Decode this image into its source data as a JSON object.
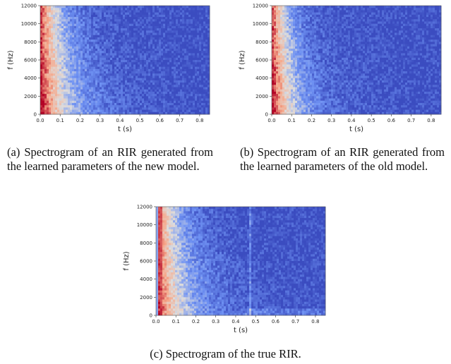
{
  "chart_data": [
    {
      "type": "heatmap",
      "xlabel": "t (s)",
      "ylabel": "f (Hz)",
      "xlim": [
        0.0,
        0.85
      ],
      "ylim": [
        0,
        12000
      ],
      "xticks": [
        "0.0",
        "0.1",
        "0.2",
        "0.3",
        "0.4",
        "0.5",
        "0.6",
        "0.7",
        "0.8"
      ],
      "yticks": [
        "0",
        "2000",
        "4000",
        "6000",
        "8000",
        "10000",
        "12000"
      ],
      "colormap": [
        "#3b4cc0",
        "#6f92f3",
        "#dddcdc",
        "#f7a789",
        "#b40426"
      ]
    },
    {
      "type": "heatmap",
      "xlabel": "t (s)",
      "ylabel": "f (Hz)",
      "xlim": [
        0.0,
        0.85
      ],
      "ylim": [
        0,
        12000
      ],
      "xticks": [
        "0.0",
        "0.1",
        "0.2",
        "0.3",
        "0.4",
        "0.5",
        "0.6",
        "0.7",
        "0.8"
      ],
      "yticks": [
        "0",
        "2000",
        "4000",
        "6000",
        "8000",
        "10000",
        "12000"
      ],
      "colormap": [
        "#3b4cc0",
        "#6f92f3",
        "#dddcdc",
        "#f7a789",
        "#b40426"
      ]
    },
    {
      "type": "heatmap",
      "xlabel": "t (s)",
      "ylabel": "f (Hz)",
      "xlim": [
        0.0,
        0.85
      ],
      "ylim": [
        0,
        12000
      ],
      "xticks": [
        "0.0",
        "0.1",
        "0.2",
        "0.3",
        "0.4",
        "0.5",
        "0.6",
        "0.7",
        "0.8"
      ],
      "yticks": [
        "0",
        "2000",
        "4000",
        "6000",
        "8000",
        "10000",
        "12000"
      ],
      "colormap": [
        "#3b4cc0",
        "#6f92f3",
        "#dddcdc",
        "#f7a789",
        "#b40426"
      ]
    }
  ],
  "captions": {
    "a": "(a) Spectrogram of an RIR generated from the learned parameters of the new model.",
    "b": "(b) Spectrogram of an RIR generated from the learned parameters of the old model.",
    "c": "(c) Spectrogram of the true RIR."
  }
}
